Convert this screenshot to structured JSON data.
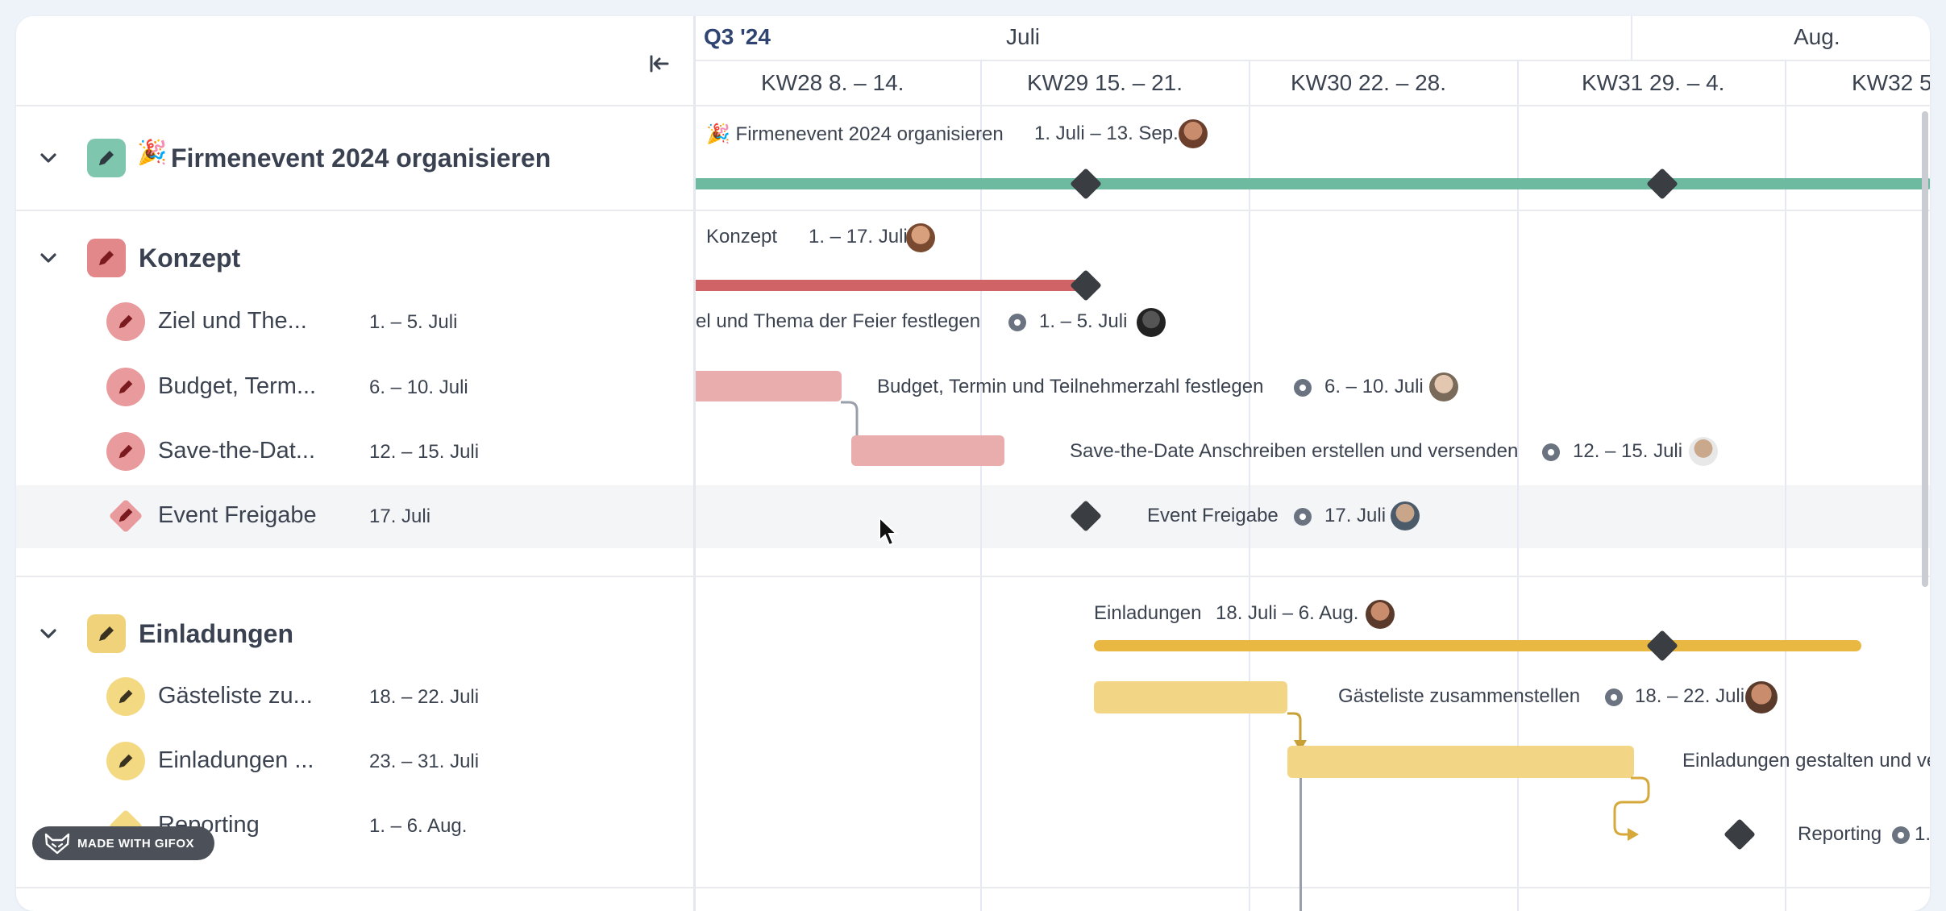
{
  "header": {
    "quarter": "Q3 '24",
    "month1": "Juli",
    "month2": "Aug.",
    "weeks": [
      "KW28 8. – 14.",
      "KW29 15. – 21.",
      "KW30 22. – 28.",
      "KW31 29. – 4.",
      "KW32 5."
    ]
  },
  "groups": {
    "firmenevent": {
      "title": "Firmenevent 2024 organisieren",
      "emoji": "🎉"
    },
    "konzept": {
      "title": "Konzept"
    },
    "einladungen": {
      "title": "Einladungen"
    }
  },
  "tasks": [
    {
      "title": "Ziel und The...",
      "date": "1. – 5. Juli"
    },
    {
      "title": "Budget, Term...",
      "date": "6. – 10. Juli"
    },
    {
      "title": "Save-the-Dat...",
      "date": "12. – 15. Juli"
    },
    {
      "title": "Event Freigabe",
      "date": "17. Juli"
    },
    {
      "title": "Gästeliste zu...",
      "date": "18. – 22. Juli"
    },
    {
      "title": "Einladungen ...",
      "date": "23. – 31. Juli"
    },
    {
      "title": "Reporting",
      "date": "1. – 6. Aug."
    }
  ],
  "gantt": {
    "firmenevent": {
      "label": "🎉 Firmenevent 2024 organisieren",
      "date": "1. Juli – 13. Sep."
    },
    "konzept": {
      "label": "Konzept",
      "date": "1. – 17. Juli"
    },
    "ziel": {
      "label": "el und Thema der Feier festlegen",
      "date": "1. – 5. Juli"
    },
    "budget": {
      "label": "Budget, Termin und Teilnehmerzahl festlegen",
      "date": "6. – 10. Juli"
    },
    "save": {
      "label": "Save-the-Date Anschreiben erstellen und versenden",
      "date": "12. – 15. Juli"
    },
    "event": {
      "label": "Event Freigabe",
      "date": "17. Juli"
    },
    "einladungen": {
      "label": "Einladungen",
      "date": "18. Juli – 6. Aug."
    },
    "gaeste": {
      "label": "Gästeliste zusammenstellen",
      "date": "18. – 22. Juli"
    },
    "gestalten": {
      "label": "Einladungen gestalten und ve"
    },
    "reporting": {
      "label": "Reporting",
      "date": "1."
    }
  },
  "colors": {
    "green": "#6dbaa1",
    "red": "#d06366",
    "redLight": "#e9adae",
    "yellow": "#e8b843",
    "yellowLight": "#f2d686",
    "milestone": "#3a3d42"
  },
  "watermark": "MADE WITH GIFOX"
}
